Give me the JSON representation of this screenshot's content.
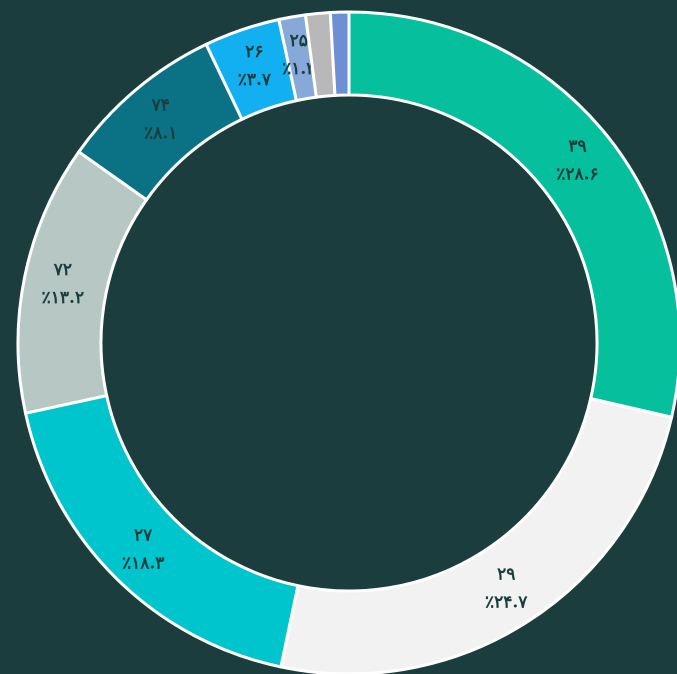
{
  "chart_data": {
    "type": "donut",
    "categories": [
      "۳۹",
      "۲۹",
      "۲۷",
      "۷۲",
      "۷۴",
      "۲۶",
      "۲۵",
      null,
      null
    ],
    "values": [
      28.6,
      24.7,
      18.3,
      13.2,
      8.1,
      3.7,
      1.3,
      1.2,
      0.9
    ],
    "value_labels": [
      "٪۲۸.۶",
      "٪۲۴.۷",
      "٪۱۸.۳",
      "٪۱۳.۲",
      "٪۸.۱",
      "٪۳.۷",
      "٪۱.۳",
      null,
      null
    ],
    "colors": [
      "#06bf9c",
      "#f2f2f2",
      "#00c5cd",
      "#b6c7c4",
      "#0b7285",
      "#12b0f0",
      "#86a9da",
      "#b8b8b8",
      "#6e8fd3"
    ]
  }
}
